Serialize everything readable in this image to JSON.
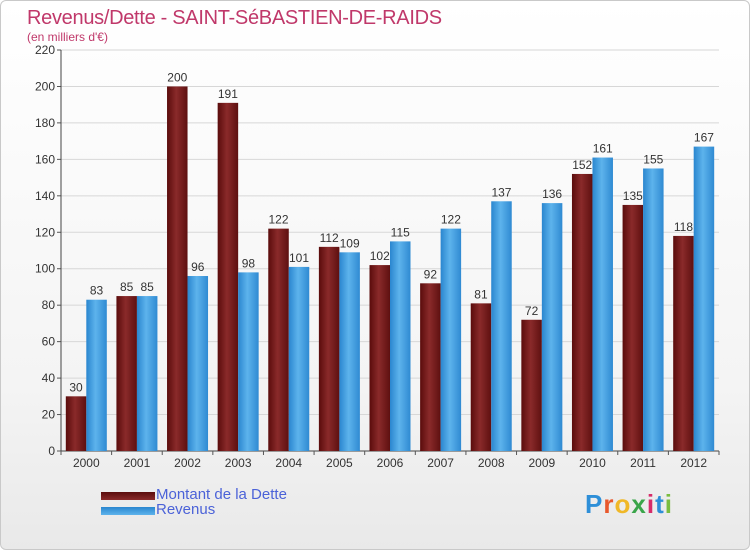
{
  "title": "Revenus/Dette - SAINT-SéBASTIEN-DE-RAIDS",
  "subtitle": "(en milliers d'€)",
  "logo": {
    "text": "Proxiti",
    "colors": [
      "#2e8fd8",
      "#e8582c",
      "#f0b828",
      "#3aa54a",
      "#d62c6a",
      "#2e8fd8",
      "#7bbd3f"
    ]
  },
  "chart_data": {
    "type": "bar",
    "categories": [
      "2000",
      "2001",
      "2002",
      "2003",
      "2004",
      "2005",
      "2006",
      "2007",
      "2008",
      "2009",
      "2010",
      "2011",
      "2012"
    ],
    "series": [
      {
        "name": "Montant de la Dette",
        "color": "#7a1a1a",
        "values": [
          30,
          85,
          200,
          191,
          122,
          112,
          102,
          92,
          81,
          72,
          152,
          135,
          118
        ]
      },
      {
        "name": "Revenus",
        "color": "#3d9de0",
        "values": [
          83,
          85,
          96,
          98,
          101,
          109,
          115,
          122,
          137,
          136,
          161,
          155,
          167
        ]
      }
    ],
    "ylim": [
      0,
      220
    ],
    "yticks": [
      0,
      20,
      40,
      60,
      80,
      100,
      120,
      140,
      160,
      180,
      200,
      220
    ],
    "grid": true,
    "legend_position": "bottom-left"
  }
}
